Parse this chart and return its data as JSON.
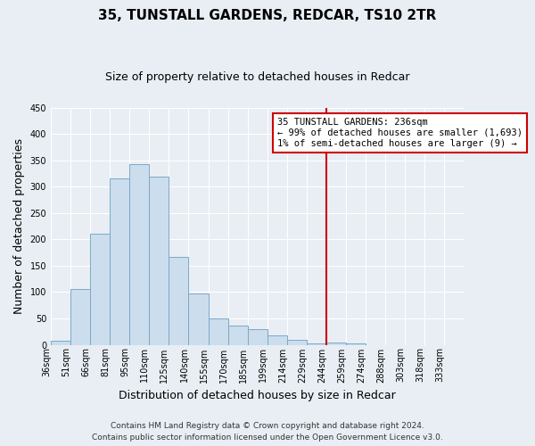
{
  "title": "35, TUNSTALL GARDENS, REDCAR, TS10 2TR",
  "subtitle": "Size of property relative to detached houses in Redcar",
  "xlabel": "Distribution of detached houses by size in Redcar",
  "ylabel": "Number of detached properties",
  "bar_labels": [
    "36sqm",
    "51sqm",
    "66sqm",
    "81sqm",
    "95sqm",
    "110sqm",
    "125sqm",
    "140sqm",
    "155sqm",
    "170sqm",
    "185sqm",
    "199sqm",
    "214sqm",
    "229sqm",
    "244sqm",
    "259sqm",
    "274sqm",
    "288sqm",
    "303sqm",
    "318sqm",
    "333sqm"
  ],
  "bar_values": [
    7,
    105,
    210,
    316,
    343,
    319,
    167,
    97,
    50,
    36,
    29,
    18,
    10,
    2,
    5,
    3,
    0,
    0,
    0,
    0,
    0
  ],
  "bar_color": "#ccdded",
  "bar_edge_color": "#7aaac8",
  "vline_color": "#cc0000",
  "ylim": [
    0,
    450
  ],
  "annotation_text": "35 TUNSTALL GARDENS: 236sqm\n← 99% of detached houses are smaller (1,693)\n1% of semi-detached houses are larger (9) →",
  "annotation_box_color": "#ffffff",
  "annotation_box_edge": "#cc0000",
  "footer1": "Contains HM Land Registry data © Crown copyright and database right 2024.",
  "footer2": "Contains public sector information licensed under the Open Government Licence v3.0.",
  "background_color": "#e8eef4",
  "grid_color": "#ffffff",
  "title_fontsize": 11,
  "subtitle_fontsize": 9,
  "tick_fontsize": 7,
  "axis_label_fontsize": 9,
  "footer_fontsize": 6.5
}
